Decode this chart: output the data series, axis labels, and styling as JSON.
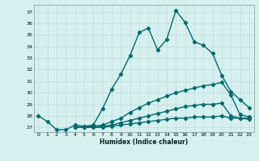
{
  "title": "",
  "xlabel": "Humidex (Indice chaleur)",
  "ylabel": "",
  "xlim": [
    -0.5,
    23.5
  ],
  "ylim": [
    26.6,
    37.6
  ],
  "yticks": [
    27,
    28,
    29,
    30,
    31,
    32,
    33,
    34,
    35,
    36,
    37
  ],
  "xticks": [
    0,
    1,
    2,
    3,
    4,
    5,
    6,
    7,
    8,
    9,
    10,
    11,
    12,
    13,
    14,
    15,
    16,
    17,
    18,
    19,
    20,
    21,
    22,
    23
  ],
  "xtick_labels": [
    "0",
    "1",
    "2",
    "3",
    "4",
    "5",
    "6",
    "7",
    "8",
    "9",
    "10",
    "11",
    "12",
    "13",
    "14",
    "15",
    "16",
    "17",
    "18",
    "19",
    "20",
    "21",
    "22",
    "23"
  ],
  "background_color": "#d6efef",
  "grid_color": "#b8d8d8",
  "line_color": "#006b6b",
  "lines": [
    {
      "x": [
        0,
        1,
        2,
        3,
        4,
        5,
        6,
        7,
        8,
        9,
        10,
        11,
        12,
        13,
        14,
        15,
        16,
        17,
        18,
        19,
        20,
        21,
        22,
        23
      ],
      "y": [
        28.0,
        27.5,
        26.8,
        26.8,
        27.2,
        27.1,
        27.2,
        28.6,
        30.3,
        31.6,
        33.2,
        35.2,
        35.6,
        33.7,
        34.6,
        37.1,
        36.1,
        34.4,
        34.1,
        33.4,
        31.5,
        30.1,
        29.4,
        28.7
      ],
      "linewidth": 1.0,
      "markersize": 2.2
    },
    {
      "x": [
        4,
        5,
        6,
        7,
        8,
        9,
        10,
        11,
        12,
        13,
        14,
        15,
        16,
        17,
        18,
        19,
        20,
        21,
        22,
        23
      ],
      "y": [
        27.0,
        27.0,
        27.1,
        27.2,
        27.5,
        27.8,
        28.3,
        28.7,
        29.1,
        29.4,
        29.7,
        30.0,
        30.2,
        30.4,
        30.6,
        30.7,
        30.9,
        29.8,
        28.1,
        27.9
      ],
      "linewidth": 1.0,
      "markersize": 2.2
    },
    {
      "x": [
        4,
        5,
        6,
        7,
        8,
        9,
        10,
        11,
        12,
        13,
        14,
        15,
        16,
        17,
        18,
        19,
        20,
        21,
        22,
        23
      ],
      "y": [
        27.0,
        27.0,
        27.1,
        27.1,
        27.2,
        27.4,
        27.6,
        27.8,
        28.0,
        28.2,
        28.4,
        28.6,
        28.8,
        28.9,
        29.0,
        29.0,
        29.1,
        28.0,
        27.8,
        27.7
      ],
      "linewidth": 1.0,
      "markersize": 2.2
    },
    {
      "x": [
        4,
        5,
        6,
        7,
        8,
        9,
        10,
        11,
        12,
        13,
        14,
        15,
        16,
        17,
        18,
        19,
        20,
        21,
        22,
        23
      ],
      "y": [
        27.0,
        27.0,
        27.0,
        27.0,
        27.1,
        27.2,
        27.3,
        27.4,
        27.5,
        27.6,
        27.7,
        27.8,
        27.8,
        27.9,
        27.9,
        27.9,
        28.0,
        27.8,
        27.8,
        27.8
      ],
      "linewidth": 1.0,
      "markersize": 2.2
    }
  ]
}
